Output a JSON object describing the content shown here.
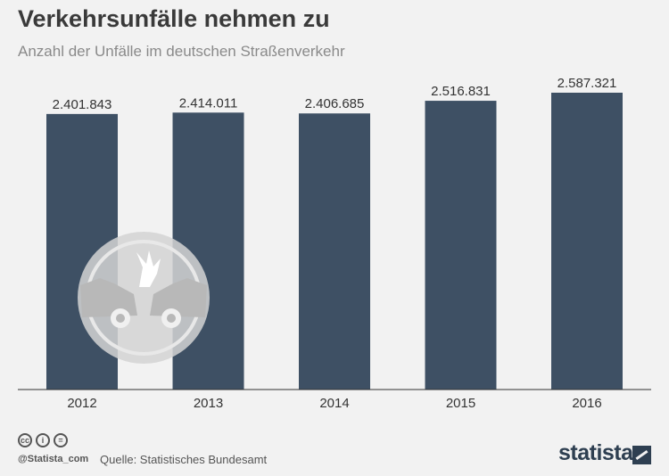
{
  "header": {
    "title": "Verkehrsunfälle nehmen zu",
    "subtitle": "Anzahl der Unfälle im deutschen Straßenverkehr"
  },
  "chart_data": {
    "type": "bar",
    "categories": [
      "2012",
      "2013",
      "2014",
      "2015",
      "2016"
    ],
    "values": [
      2401843,
      2414011,
      2406685,
      2516831,
      2587321
    ],
    "value_labels": [
      "2.401.843",
      "2.414.011",
      "2.406.685",
      "2.516.831",
      "2.587.321"
    ],
    "title": "Verkehrsunfälle nehmen zu",
    "subtitle": "Anzahl der Unfälle im deutschen Straßenverkehr",
    "xlabel": "",
    "ylabel": "",
    "ylim": [
      0,
      2587321
    ],
    "grid": false,
    "bar_color": "#3e5064"
  },
  "footer": {
    "cc_icons": [
      "cc-icon",
      "by-icon",
      "nd-icon"
    ],
    "cc_glyphs": [
      "cc",
      "i",
      "="
    ],
    "handle": "@Statista_com",
    "source": "Quelle: Statistisches Bundesamt",
    "brand": "statista"
  }
}
